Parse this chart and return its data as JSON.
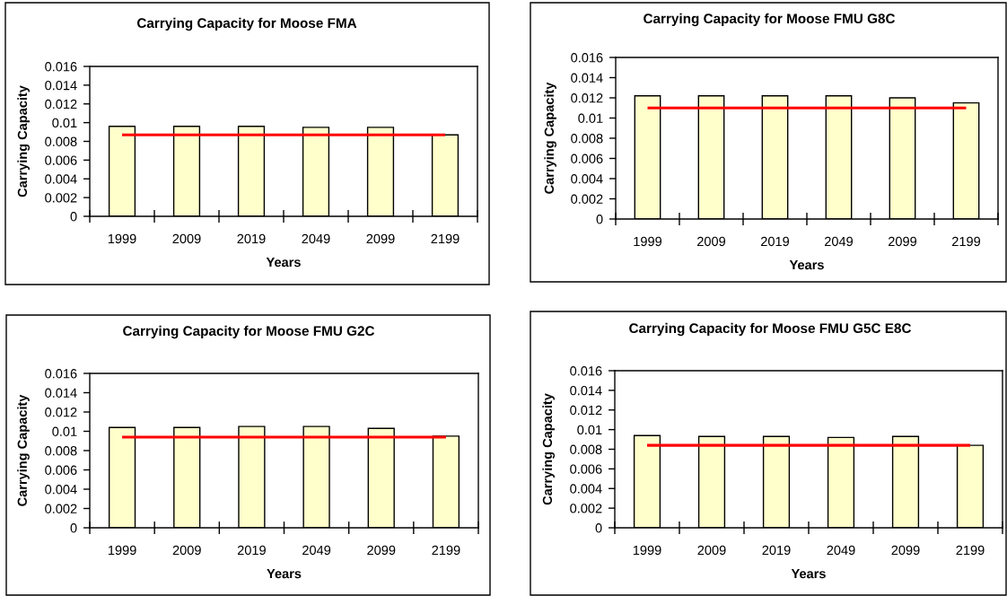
{
  "chart_data": [
    {
      "type": "bar",
      "title": "Carrying Capacity for Moose FMA",
      "xlabel": "Years",
      "ylabel": "Carrying Capacity",
      "categories": [
        "1999",
        "2009",
        "2019",
        "2049",
        "2099",
        "2199"
      ],
      "series": [
        {
          "color": "#ffffcc",
          "values": [
            0.0096,
            0.0096,
            0.0096,
            0.0095,
            0.0095,
            0.0087
          ]
        },
        {
          "type": "line",
          "color": "#ff0000",
          "values": [
            0.0087,
            0.0087,
            0.0087,
            0.0087,
            0.0087,
            0.0087
          ]
        }
      ],
      "ylim": [
        0,
        0.016
      ],
      "yticks": [
        0,
        0.002,
        0.004,
        0.006,
        0.008,
        0.01,
        0.012,
        0.014,
        0.016
      ]
    },
    {
      "type": "bar",
      "title": "Carrying Capacity for Moose FMU G8C",
      "xlabel": "Years",
      "ylabel": "Carrying Capacity",
      "categories": [
        "1999",
        "2009",
        "2019",
        "2049",
        "2099",
        "2199"
      ],
      "series": [
        {
          "color": "#ffffcc",
          "values": [
            0.0122,
            0.0122,
            0.0122,
            0.0122,
            0.012,
            0.0115
          ]
        },
        {
          "type": "line",
          "color": "#ff0000",
          "values": [
            0.011,
            0.011,
            0.011,
            0.011,
            0.011,
            0.011
          ]
        }
      ],
      "ylim": [
        0,
        0.016
      ],
      "yticks": [
        0,
        0.002,
        0.004,
        0.006,
        0.008,
        0.01,
        0.012,
        0.014,
        0.016
      ]
    },
    {
      "type": "bar",
      "title": "Carrying Capacity for Moose FMU G2C",
      "xlabel": "Years",
      "ylabel": "Carrying Capacity",
      "categories": [
        "1999",
        "2009",
        "2019",
        "2049",
        "2099",
        "2199"
      ],
      "series": [
        {
          "color": "#ffffcc",
          "values": [
            0.0104,
            0.0104,
            0.0105,
            0.0105,
            0.0103,
            0.0095
          ]
        },
        {
          "type": "line",
          "color": "#ff0000",
          "values": [
            0.0094,
            0.0094,
            0.0094,
            0.0094,
            0.0094,
            0.0094
          ]
        }
      ],
      "ylim": [
        0,
        0.016
      ],
      "yticks": [
        0,
        0.002,
        0.004,
        0.006,
        0.008,
        0.01,
        0.012,
        0.014,
        0.016
      ]
    },
    {
      "type": "bar",
      "title": "Carrying Capacity for Moose FMU G5C E8C",
      "xlabel": "Years",
      "ylabel": "Carrying Capacity",
      "categories": [
        "1999",
        "2009",
        "2019",
        "2049",
        "2099",
        "2199"
      ],
      "series": [
        {
          "color": "#ffffcc",
          "values": [
            0.0094,
            0.0093,
            0.0093,
            0.0092,
            0.0093,
            0.0084
          ]
        },
        {
          "type": "line",
          "color": "#ff0000",
          "values": [
            0.0084,
            0.0084,
            0.0084,
            0.0084,
            0.0084,
            0.0084
          ]
        }
      ],
      "ylim": [
        0,
        0.016
      ],
      "yticks": [
        0,
        0.002,
        0.004,
        0.006,
        0.008,
        0.01,
        0.012,
        0.014,
        0.016
      ]
    }
  ]
}
